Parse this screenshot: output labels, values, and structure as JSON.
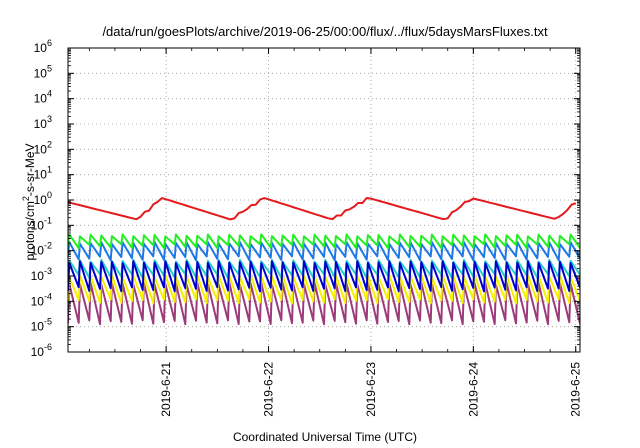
{
  "chart_data": {
    "type": "line",
    "title": "/data/run/goesPlots/archive/2019-06-25/00:00/flux/../flux/5daysMarsFluxes.txt",
    "xlabel": "Coordinated Universal Time (UTC)",
    "ylabel": {
      "prefix": "protons/cm",
      "sup": "2",
      "suffix": "-s-sr-MeV"
    },
    "y_scale": "log",
    "y_ticks": [
      {
        "base": "10",
        "exp": "-6",
        "value": 1e-06
      },
      {
        "base": "10",
        "exp": "-5",
        "value": 1e-05
      },
      {
        "base": "10",
        "exp": "-4",
        "value": 0.0001
      },
      {
        "base": "10",
        "exp": "-3",
        "value": 0.001
      },
      {
        "base": "10",
        "exp": "-2",
        "value": 0.01
      },
      {
        "base": "10",
        "exp": "-1",
        "value": 0.1
      },
      {
        "base": "10",
        "exp": "0",
        "value": 1
      },
      {
        "base": "10",
        "exp": "1",
        "value": 10
      },
      {
        "base": "10",
        "exp": "2",
        "value": 100
      },
      {
        "base": "10",
        "exp": "3",
        "value": 1000
      },
      {
        "base": "10",
        "exp": "4",
        "value": 10000
      },
      {
        "base": "10",
        "exp": "5",
        "value": 100000
      },
      {
        "base": "10",
        "exp": "6",
        "value": 1000000
      }
    ],
    "x_ticks": [
      {
        "label": "2019-6-21",
        "day": 21
      },
      {
        "label": "2019-6-22",
        "day": 22
      },
      {
        "label": "2019-6-23",
        "day": 23
      },
      {
        "label": "2019-6-24",
        "day": 24
      },
      {
        "label": "2019-6-25",
        "day": 25
      }
    ],
    "xlim": [
      "2019-06-20T01:00",
      "2019-06-25T01:00"
    ],
    "ylim": [
      1e-06,
      1000000.0
    ],
    "grid": true,
    "legend": "none",
    "series": [
      {
        "color": "#e41a1c",
        "pattern": "sawtooth",
        "period_hours": 2.5,
        "peak": 1.2,
        "trough": 0.12,
        "envelope_peaks_days": [
          20.0,
          21.0,
          22.0,
          23.0,
          24.0,
          25.0
        ],
        "note_values": "slow decay with periodic rises"
      },
      {
        "color": "#22ee22",
        "pattern": "sawtooth",
        "period_hours": 2.5,
        "peak": 0.04,
        "trough": 0.015
      },
      {
        "color": "#1e78e6",
        "pattern": "sawtooth",
        "period_hours": 2.5,
        "peak": 0.02,
        "trough": 0.005
      },
      {
        "color": "#22d0c8",
        "pattern": "sawtooth",
        "period_hours": 2.5,
        "peak": 0.004,
        "trough": 0.001
      },
      {
        "color": "#0000cc",
        "pattern": "sawtooth",
        "period_hours": 2.5,
        "peak": 0.0035,
        "trough": 0.0003
      },
      {
        "color": "#f5f000",
        "pattern": "sawtooth",
        "period_hours": 2.5,
        "peak": 0.001,
        "trough": 0.0001
      },
      {
        "color": "#9c3a7a",
        "pattern": "sawtooth",
        "period_hours": 2.5,
        "peak": 0.0005,
        "trough": 1.5e-05
      }
    ]
  }
}
